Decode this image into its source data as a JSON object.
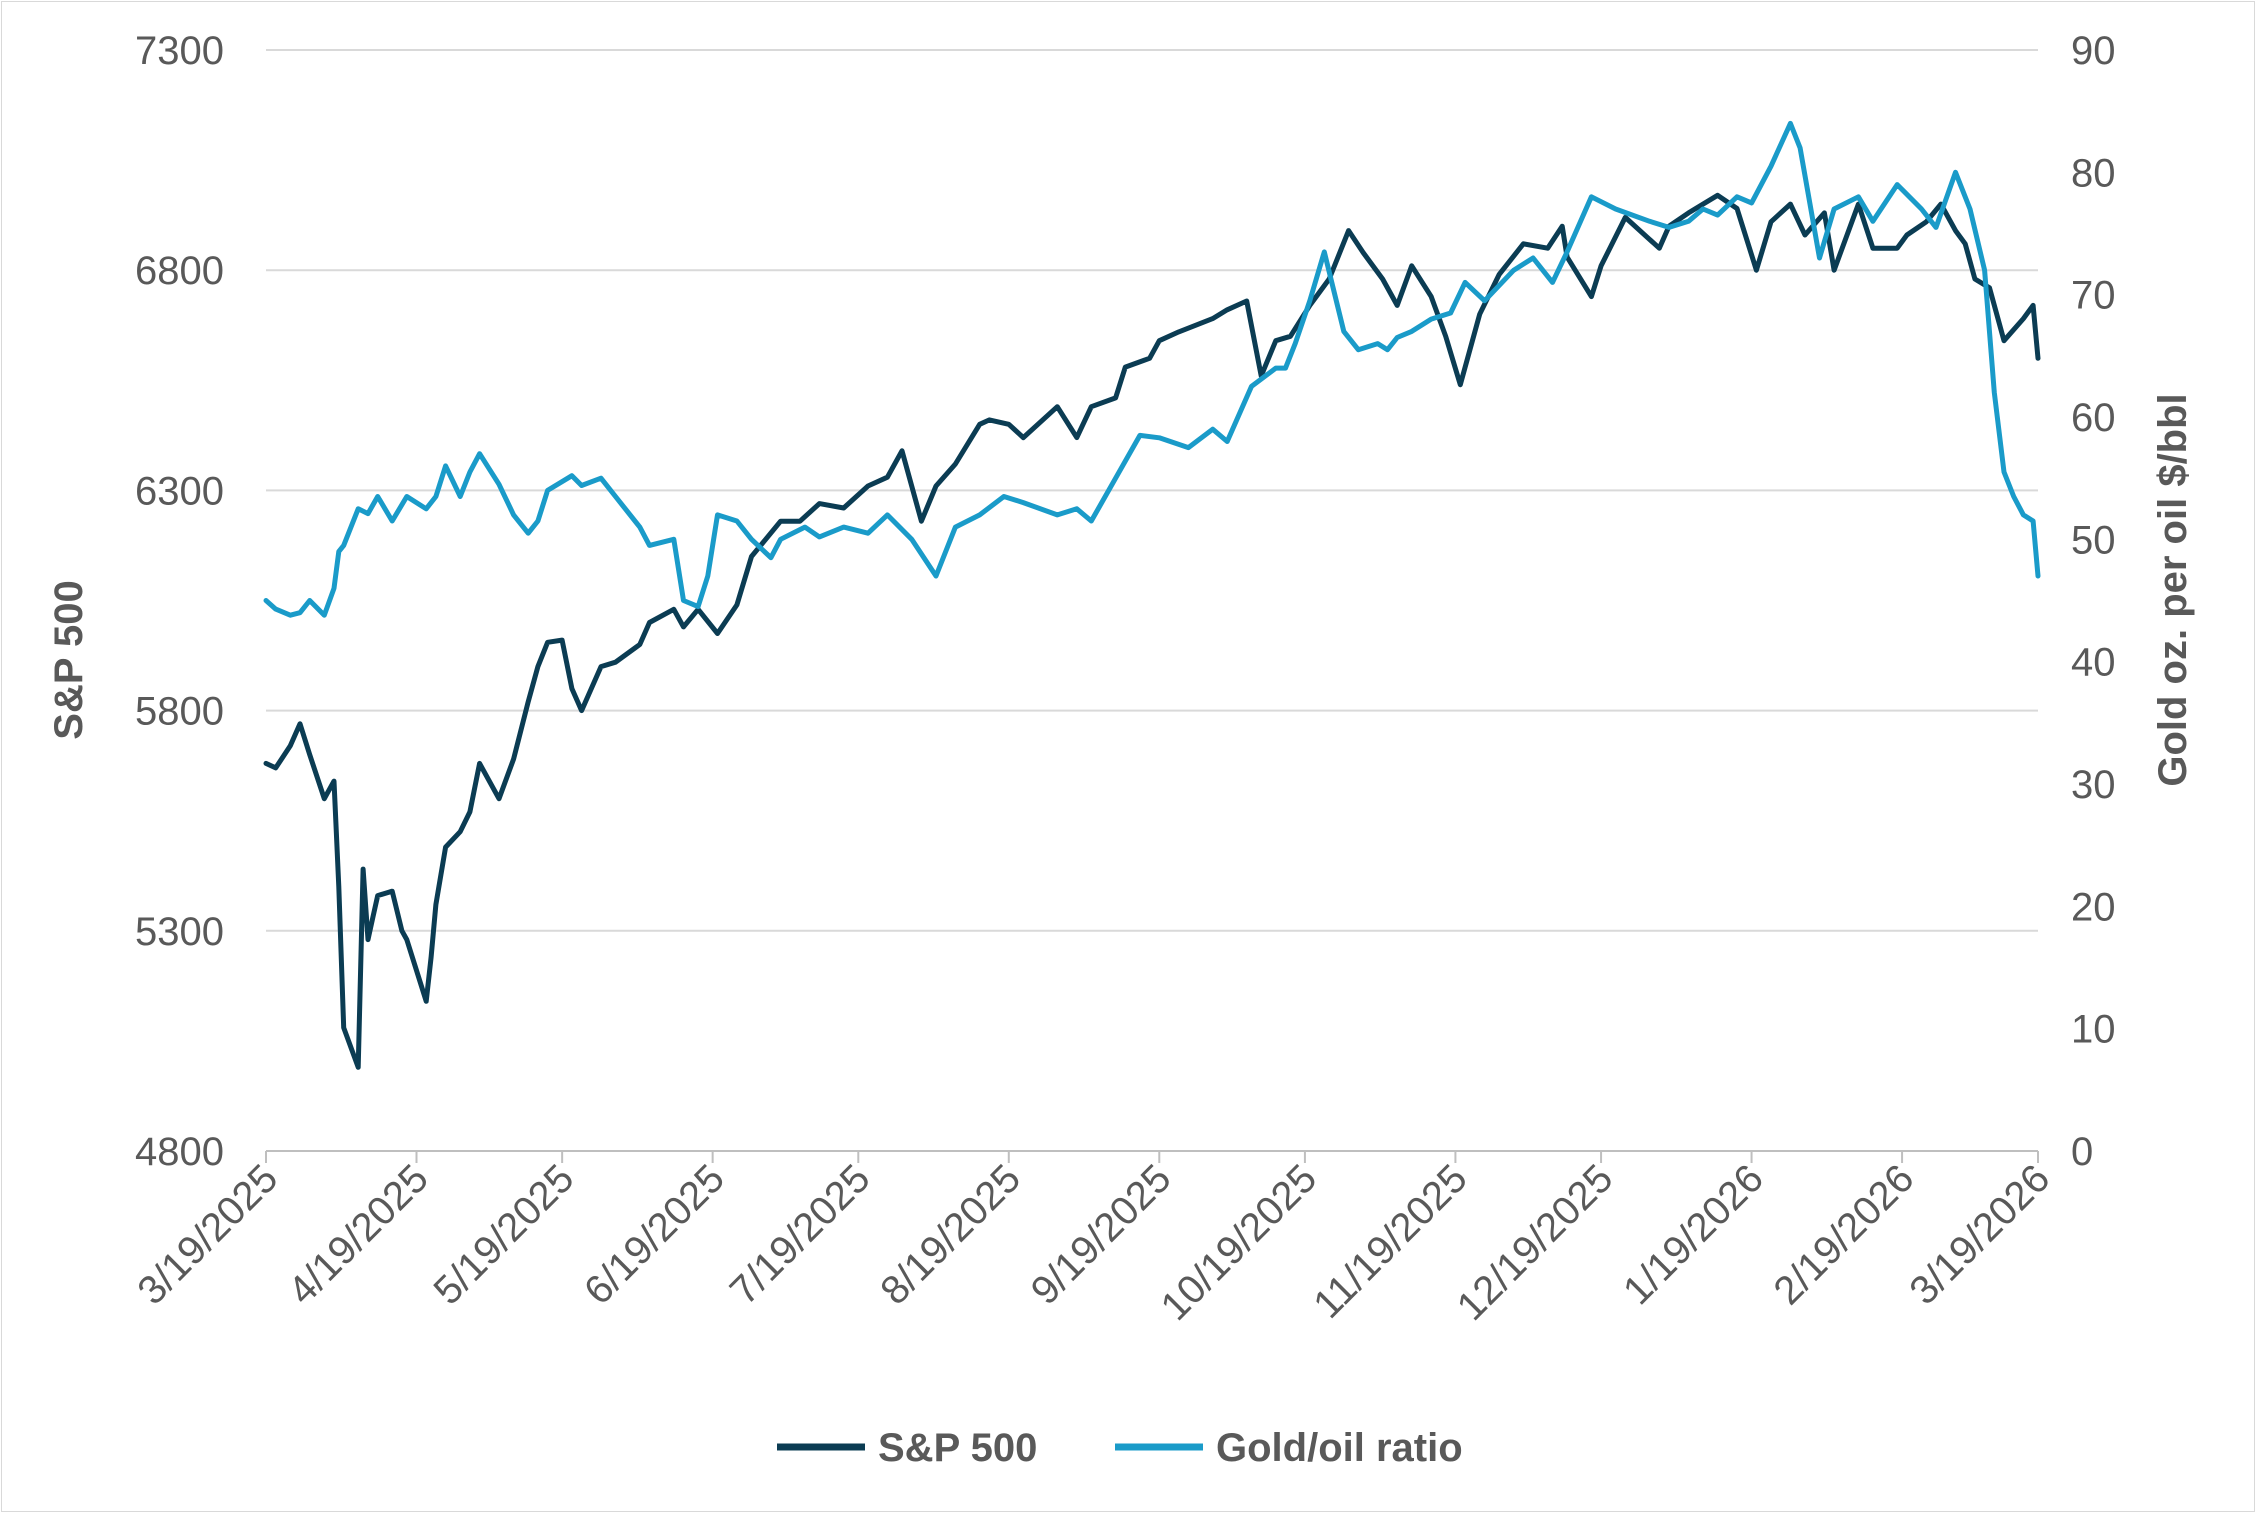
{
  "chart_data": {
    "type": "line",
    "title": "",
    "xlabel": "",
    "ylabel": "S&P 500",
    "y2label": "Gold oz. per oil $/bbl",
    "ylim": [
      4800,
      7300
    ],
    "y2lim": [
      0,
      90
    ],
    "yticks": [
      "7300",
      "6800",
      "6300",
      "5800",
      "5300",
      "4800"
    ],
    "y2ticks": [
      "90",
      "80",
      "70",
      "60",
      "50",
      "40",
      "30",
      "20",
      "10",
      "0"
    ],
    "xticks": [
      "3/19/2025",
      "4/19/2025",
      "5/19/2025",
      "6/19/2025",
      "7/19/2025",
      "8/19/2025",
      "9/19/2025",
      "10/19/2025",
      "11/19/2025",
      "12/19/2025",
      "1/19/2026",
      "2/19/2026",
      "3/19/2026"
    ],
    "xlim": [
      "2025-03-19",
      "2026-03-19"
    ],
    "grid": true,
    "legend_position": "bottom",
    "colors": {
      "sp500": "#0b3c53",
      "gold_oil": "#1a9bc9",
      "grid": "#d9d9d9",
      "axis": "#bfbfbf",
      "text": "#595959"
    },
    "series": [
      {
        "name": "S&P 500",
        "axis": "left",
        "color": "#0b3c53",
        "x": [
          "2025-03-19",
          "2025-03-21",
          "2025-03-24",
          "2025-03-26",
          "2025-03-28",
          "2025-03-31",
          "2025-04-02",
          "2025-04-03",
          "2025-04-04",
          "2025-04-07",
          "2025-04-08",
          "2025-04-09",
          "2025-04-10",
          "2025-04-11",
          "2025-04-14",
          "2025-04-16",
          "2025-04-17",
          "2025-04-21",
          "2025-04-22",
          "2025-04-23",
          "2025-04-25",
          "2025-04-28",
          "2025-04-30",
          "2025-05-02",
          "2025-05-06",
          "2025-05-09",
          "2025-05-12",
          "2025-05-14",
          "2025-05-16",
          "2025-05-19",
          "2025-05-21",
          "2025-05-23",
          "2025-05-27",
          "2025-05-30",
          "2025-06-04",
          "2025-06-06",
          "2025-06-11",
          "2025-06-13",
          "2025-06-16",
          "2025-06-20",
          "2025-06-24",
          "2025-06-27",
          "2025-07-03",
          "2025-07-07",
          "2025-07-11",
          "2025-07-16",
          "2025-07-21",
          "2025-07-25",
          "2025-07-28",
          "2025-08-01",
          "2025-08-04",
          "2025-08-08",
          "2025-08-13",
          "2025-08-15",
          "2025-08-19",
          "2025-08-22",
          "2025-08-29",
          "2025-09-02",
          "2025-09-05",
          "2025-09-10",
          "2025-09-12",
          "2025-09-17",
          "2025-09-19",
          "2025-09-23",
          "2025-09-30",
          "2025-10-03",
          "2025-10-07",
          "2025-10-10",
          "2025-10-13",
          "2025-10-16",
          "2025-10-20",
          "2025-10-24",
          "2025-10-28",
          "2025-10-31",
          "2025-11-04",
          "2025-11-07",
          "2025-11-10",
          "2025-11-14",
          "2025-11-17",
          "2025-11-20",
          "2025-11-24",
          "2025-11-28",
          "2025-12-03",
          "2025-12-08",
          "2025-12-11",
          "2025-12-12",
          "2025-12-17",
          "2025-12-19",
          "2025-12-24",
          "2025-12-31",
          "2026-01-02",
          "2026-01-06",
          "2026-01-12",
          "2026-01-16",
          "2026-01-20",
          "2026-01-23",
          "2026-01-27",
          "2026-01-30",
          "2026-02-03",
          "2026-02-05",
          "2026-02-10",
          "2026-02-13",
          "2026-02-18",
          "2026-02-20",
          "2026-02-24",
          "2026-02-27",
          "2026-03-02",
          "2026-03-04",
          "2026-03-06",
          "2026-03-09",
          "2026-03-12",
          "2026-03-16",
          "2026-03-18",
          "2026-03-19"
        ],
        "values": [
          5680,
          5670,
          5720,
          5770,
          5700,
          5600,
          5640,
          5400,
          5080,
          4990,
          5440,
          5280,
          5330,
          5380,
          5390,
          5300,
          5280,
          5140,
          5240,
          5360,
          5490,
          5525,
          5570,
          5680,
          5600,
          5690,
          5820,
          5900,
          5955,
          5960,
          5850,
          5800,
          5900,
          5910,
          5950,
          6000,
          6030,
          5990,
          6030,
          5975,
          6040,
          6150,
          6230,
          6230,
          6270,
          6260,
          6310,
          6330,
          6390,
          6230,
          6310,
          6360,
          6450,
          6460,
          6450,
          6420,
          6490,
          6420,
          6490,
          6510,
          6580,
          6600,
          6640,
          6660,
          6690,
          6710,
          6730,
          6560,
          6640,
          6650,
          6720,
          6780,
          6890,
          6840,
          6780,
          6720,
          6810,
          6740,
          6650,
          6540,
          6700,
          6790,
          6860,
          6850,
          6900,
          6830,
          6740,
          6810,
          6920,
          6850,
          6900,
          6930,
          6970,
          6940,
          6800,
          6910,
          6950,
          6880,
          6930,
          6800,
          6950,
          6850,
          6850,
          6880,
          6910,
          6950,
          6890,
          6860,
          6780,
          6760,
          6640,
          6690,
          6720,
          6600
        ]
      },
      {
        "name": "Gold/oil ratio",
        "axis": "right",
        "color": "#1a9bc9",
        "x": [
          "2025-03-19",
          "2025-03-21",
          "2025-03-24",
          "2025-03-26",
          "2025-03-28",
          "2025-03-31",
          "2025-04-02",
          "2025-04-03",
          "2025-04-04",
          "2025-04-07",
          "2025-04-09",
          "2025-04-11",
          "2025-04-14",
          "2025-04-17",
          "2025-04-21",
          "2025-04-23",
          "2025-04-25",
          "2025-04-28",
          "2025-04-30",
          "2025-05-02",
          "2025-05-06",
          "2025-05-09",
          "2025-05-12",
          "2025-05-14",
          "2025-05-16",
          "2025-05-21",
          "2025-05-23",
          "2025-05-27",
          "2025-05-30",
          "2025-06-04",
          "2025-06-06",
          "2025-06-11",
          "2025-06-13",
          "2025-06-16",
          "2025-06-18",
          "2025-06-20",
          "2025-06-24",
          "2025-06-27",
          "2025-07-01",
          "2025-07-03",
          "2025-07-08",
          "2025-07-11",
          "2025-07-16",
          "2025-07-21",
          "2025-07-25",
          "2025-07-30",
          "2025-08-04",
          "2025-08-08",
          "2025-08-13",
          "2025-08-18",
          "2025-08-22",
          "2025-08-29",
          "2025-09-02",
          "2025-09-05",
          "2025-09-10",
          "2025-09-15",
          "2025-09-19",
          "2025-09-25",
          "2025-09-30",
          "2025-10-03",
          "2025-10-08",
          "2025-10-13",
          "2025-10-15",
          "2025-10-17",
          "2025-10-20",
          "2025-10-23",
          "2025-10-27",
          "2025-10-30",
          "2025-11-03",
          "2025-11-05",
          "2025-11-07",
          "2025-11-10",
          "2025-11-14",
          "2025-11-18",
          "2025-11-21",
          "2025-11-25",
          "2025-12-01",
          "2025-12-05",
          "2025-12-09",
          "2025-12-12",
          "2025-12-17",
          "2025-12-22",
          "2025-12-29",
          "2026-01-02",
          "2026-01-06",
          "2026-01-09",
          "2026-01-12",
          "2026-01-16",
          "2026-01-19",
          "2026-01-23",
          "2026-01-27",
          "2026-01-29",
          "2026-02-02",
          "2026-02-05",
          "2026-02-10",
          "2026-02-13",
          "2026-02-18",
          "2026-02-23",
          "2026-02-26",
          "2026-03-02",
          "2026-03-05",
          "2026-03-08",
          "2026-03-10",
          "2026-03-12",
          "2026-03-14",
          "2026-03-16",
          "2026-03-18",
          "2026-03-19"
        ],
        "values": [
          45,
          44.3,
          43.8,
          44,
          45,
          43.8,
          46,
          49,
          49.5,
          52.5,
          52.1,
          53.5,
          51.5,
          53.5,
          52.5,
          53.5,
          56,
          53.5,
          55.5,
          57,
          54.5,
          52,
          50.5,
          51.5,
          54,
          55.2,
          54.4,
          55,
          53.5,
          51,
          49.5,
          50,
          45,
          44.5,
          47,
          52,
          51.5,
          50,
          48.5,
          50,
          51,
          50.2,
          51,
          50.5,
          52,
          50,
          47,
          51,
          52,
          53.5,
          53,
          52,
          52.5,
          51.5,
          55,
          58.5,
          58.3,
          57.5,
          59,
          58,
          62.5,
          64,
          64,
          66,
          69.5,
          73.5,
          67,
          65.5,
          66,
          65.5,
          66.5,
          67,
          68,
          68.5,
          71,
          69.5,
          72,
          73,
          71,
          73.5,
          78,
          77,
          76,
          75.5,
          76,
          77,
          76.5,
          78,
          77.5,
          80.5,
          84,
          82,
          73,
          77,
          78,
          76,
          79,
          77,
          75.5,
          80,
          77,
          72,
          62,
          55.5,
          53.5,
          52,
          51.5,
          47
        ]
      }
    ]
  },
  "legend": {
    "items": [
      {
        "label": "S&P 500",
        "color": "#0b3c53"
      },
      {
        "label": "Gold/oil ratio",
        "color": "#1a9bc9"
      }
    ]
  }
}
